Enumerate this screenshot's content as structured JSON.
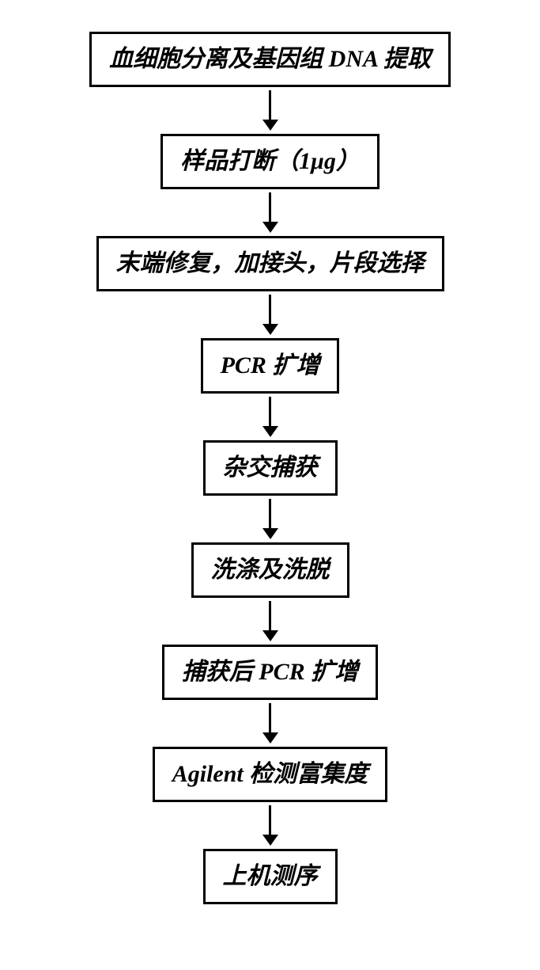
{
  "flowchart": {
    "type": "flowchart",
    "direction": "vertical",
    "background_color": "#ffffff",
    "node_border_color": "#000000",
    "node_border_width": 3,
    "node_bg_color": "#ffffff",
    "node_text_color": "#000000",
    "node_font_size": 30,
    "node_font_weight": "bold",
    "node_font_style": "italic",
    "arrow_color": "#000000",
    "arrow_line_width": 3,
    "arrow_line_length": 38,
    "arrow_head_width": 20,
    "arrow_head_height": 14,
    "steps": [
      {
        "label": "血细胞分离及基因组 DNA 提取"
      },
      {
        "label": "样品打断（1μg）"
      },
      {
        "label": "末端修复，加接头，片段选择"
      },
      {
        "label": "PCR 扩增"
      },
      {
        "label": "杂交捕获"
      },
      {
        "label": "洗涤及洗脱"
      },
      {
        "label": "捕获后 PCR 扩增"
      },
      {
        "label": "Agilent 检测富集度"
      },
      {
        "label": "上机测序"
      }
    ]
  }
}
